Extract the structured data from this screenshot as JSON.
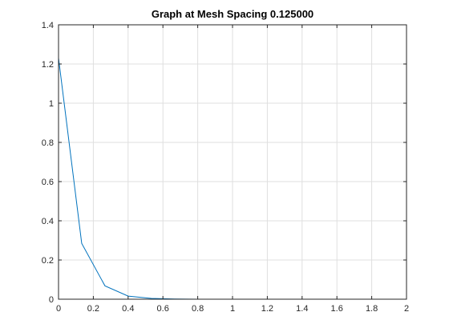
{
  "chart_data": {
    "type": "line",
    "title": "Graph at Mesh Spacing 0.125000",
    "xlabel": "",
    "ylabel": "",
    "xlim": [
      0,
      2
    ],
    "ylim": [
      0,
      1.4
    ],
    "x_ticks": [
      0,
      0.2,
      0.4,
      0.6,
      0.8,
      1,
      1.2,
      1.4,
      1.6,
      1.8,
      2
    ],
    "x_tick_labels": [
      "0",
      "0.2",
      "0.4",
      "0.6",
      "0.8",
      "1",
      "1.2",
      "1.4",
      "1.6",
      "1.8",
      "2"
    ],
    "y_ticks": [
      0,
      0.2,
      0.4,
      0.6,
      0.8,
      1,
      1.2,
      1.4
    ],
    "y_tick_labels": [
      "0",
      "0.2",
      "0.4",
      "0.6",
      "0.8",
      "1",
      "1.2",
      "1.4"
    ],
    "grid": true,
    "legend": "none",
    "series": [
      {
        "color": "#0072bd",
        "x": [
          0,
          0.133,
          0.267,
          0.4,
          0.533,
          0.667,
          0.8,
          0.933,
          1.067,
          1.2,
          1.333,
          1.467,
          1.6,
          1.733,
          1.867,
          2
        ],
        "y": [
          1.23,
          0.285,
          0.068,
          0.016,
          0.004,
          0.001,
          0.0002,
          0.0001,
          0,
          0,
          0,
          0,
          0,
          0,
          0,
          0
        ]
      }
    ]
  }
}
